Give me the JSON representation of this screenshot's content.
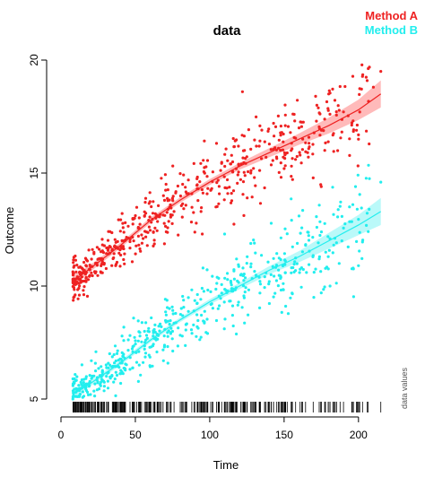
{
  "chart_data": {
    "type": "scatter",
    "title": "data",
    "xlabel": "Time",
    "ylabel": "Outcome",
    "side_note": "data values",
    "xlim": [
      0,
      220
    ],
    "ylim": [
      5,
      20
    ],
    "x_ticks": [
      0,
      50,
      100,
      150,
      200
    ],
    "y_ticks": [
      5,
      10,
      15,
      20
    ],
    "grid": false,
    "legend_position": "top-right",
    "rug": true,
    "series": [
      {
        "name": "Method A",
        "color": "#ee2222",
        "band_color": "#ffb3b3",
        "smooth_x": [
          8,
          20,
          40,
          60,
          80,
          100,
          120,
          140,
          160,
          180,
          200,
          215
        ],
        "smooth_y": [
          10.2,
          10.8,
          11.8,
          12.9,
          13.8,
          14.6,
          15.3,
          15.9,
          16.5,
          17.1,
          17.8,
          18.5
        ],
        "band_halfwidth": [
          0.25,
          0.15,
          0.12,
          0.12,
          0.12,
          0.13,
          0.15,
          0.2,
          0.25,
          0.35,
          0.45,
          0.6
        ],
        "scatter_noise": 1.1,
        "points": [
          [
            210,
            18.8
          ],
          [
            215,
            19.5
          ],
          [
            180,
            18.5
          ],
          [
            172,
            18.0
          ],
          [
            122,
            18.6
          ],
          [
            135,
            16.9
          ],
          [
            150,
            15.2
          ],
          [
            175,
            14.4
          ],
          [
            200,
            16.5
          ],
          [
            12,
            9.9
          ],
          [
            8,
            10.3
          ],
          [
            95,
            12.3
          ],
          [
            130,
            14.8
          ],
          [
            160,
            17.0
          ]
        ]
      },
      {
        "name": "Method B",
        "color": "#22eeee",
        "band_color": "#b3f8f8",
        "smooth_x": [
          8,
          20,
          40,
          60,
          80,
          100,
          120,
          140,
          160,
          180,
          200,
          215
        ],
        "smooth_y": [
          5.2,
          5.7,
          6.6,
          7.6,
          8.5,
          9.3,
          10.0,
          10.7,
          11.3,
          12.0,
          12.7,
          13.3
        ],
        "band_halfwidth": [
          0.2,
          0.12,
          0.1,
          0.1,
          0.1,
          0.12,
          0.14,
          0.18,
          0.25,
          0.35,
          0.45,
          0.6
        ],
        "scatter_noise": 1.1,
        "points": [
          [
            215,
            14.6
          ],
          [
            198,
            14.4
          ],
          [
            172,
            12.6
          ],
          [
            178,
            11.5
          ],
          [
            165,
            10.6
          ],
          [
            200,
            10.9
          ],
          [
            175,
            9.7
          ],
          [
            130,
            11.9
          ],
          [
            110,
            12.3
          ],
          [
            118,
            11.2
          ],
          [
            170,
            9.5
          ],
          [
            140,
            10.2
          ],
          [
            8,
            5.0
          ],
          [
            10,
            5.3
          ],
          [
            160,
            13.1
          ]
        ]
      }
    ]
  }
}
